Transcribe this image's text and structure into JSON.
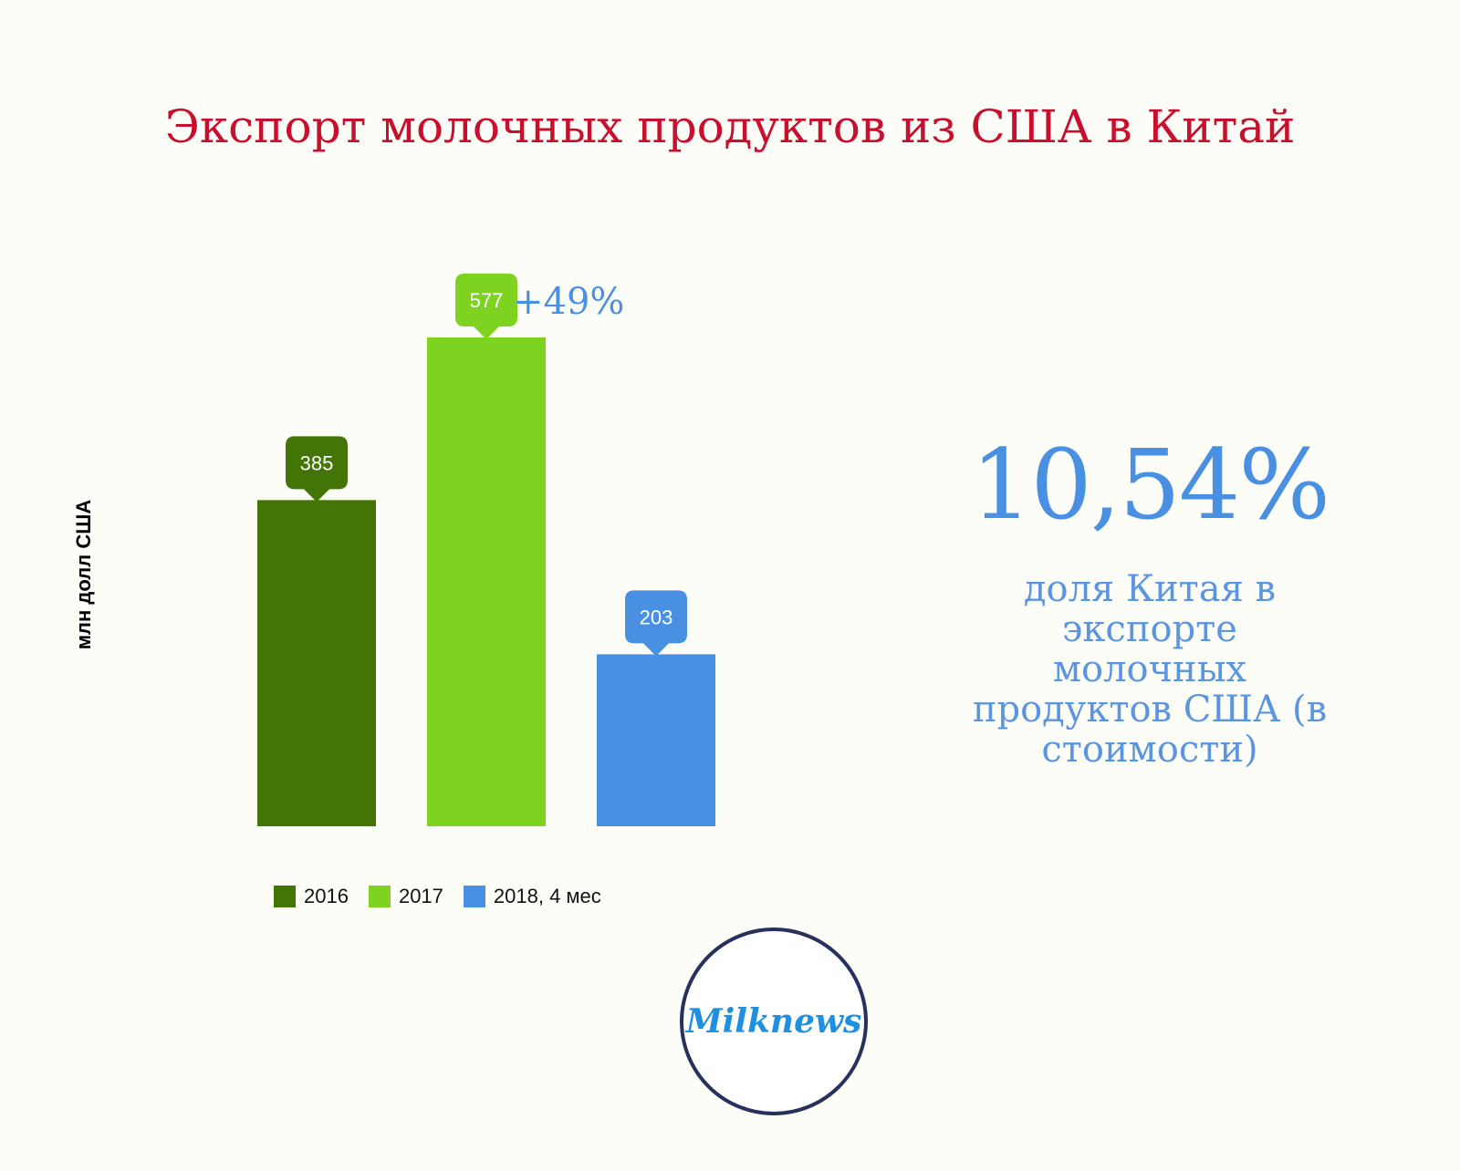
{
  "title": "Экспорт молочных продуктов из США в Китай",
  "chart_data": {
    "type": "bar",
    "categories": [
      "2016",
      "2017",
      "2018, 4 мес"
    ],
    "values": [
      385,
      577,
      203
    ],
    "ylabel": "млн долл США",
    "ylim": [
      0,
      577
    ],
    "grid": false,
    "legend_placement": "bottom",
    "colors": [
      "#437506",
      "#7ed321",
      "#4a90e2"
    ],
    "annotations": [
      {
        "category": "2017",
        "text": "+49%"
      }
    ]
  },
  "legend": [
    {
      "label": "2016",
      "color": "#437506"
    },
    {
      "label": "2017",
      "color": "#7ed321"
    },
    {
      "label": "2018, 4 мес",
      "color": "#4a90e2"
    }
  ],
  "share": {
    "value": "10,54%",
    "caption": "доля Китая в экспорте молочных продуктов США (в стоимости)"
  },
  "logo": {
    "text": "Milknews"
  }
}
